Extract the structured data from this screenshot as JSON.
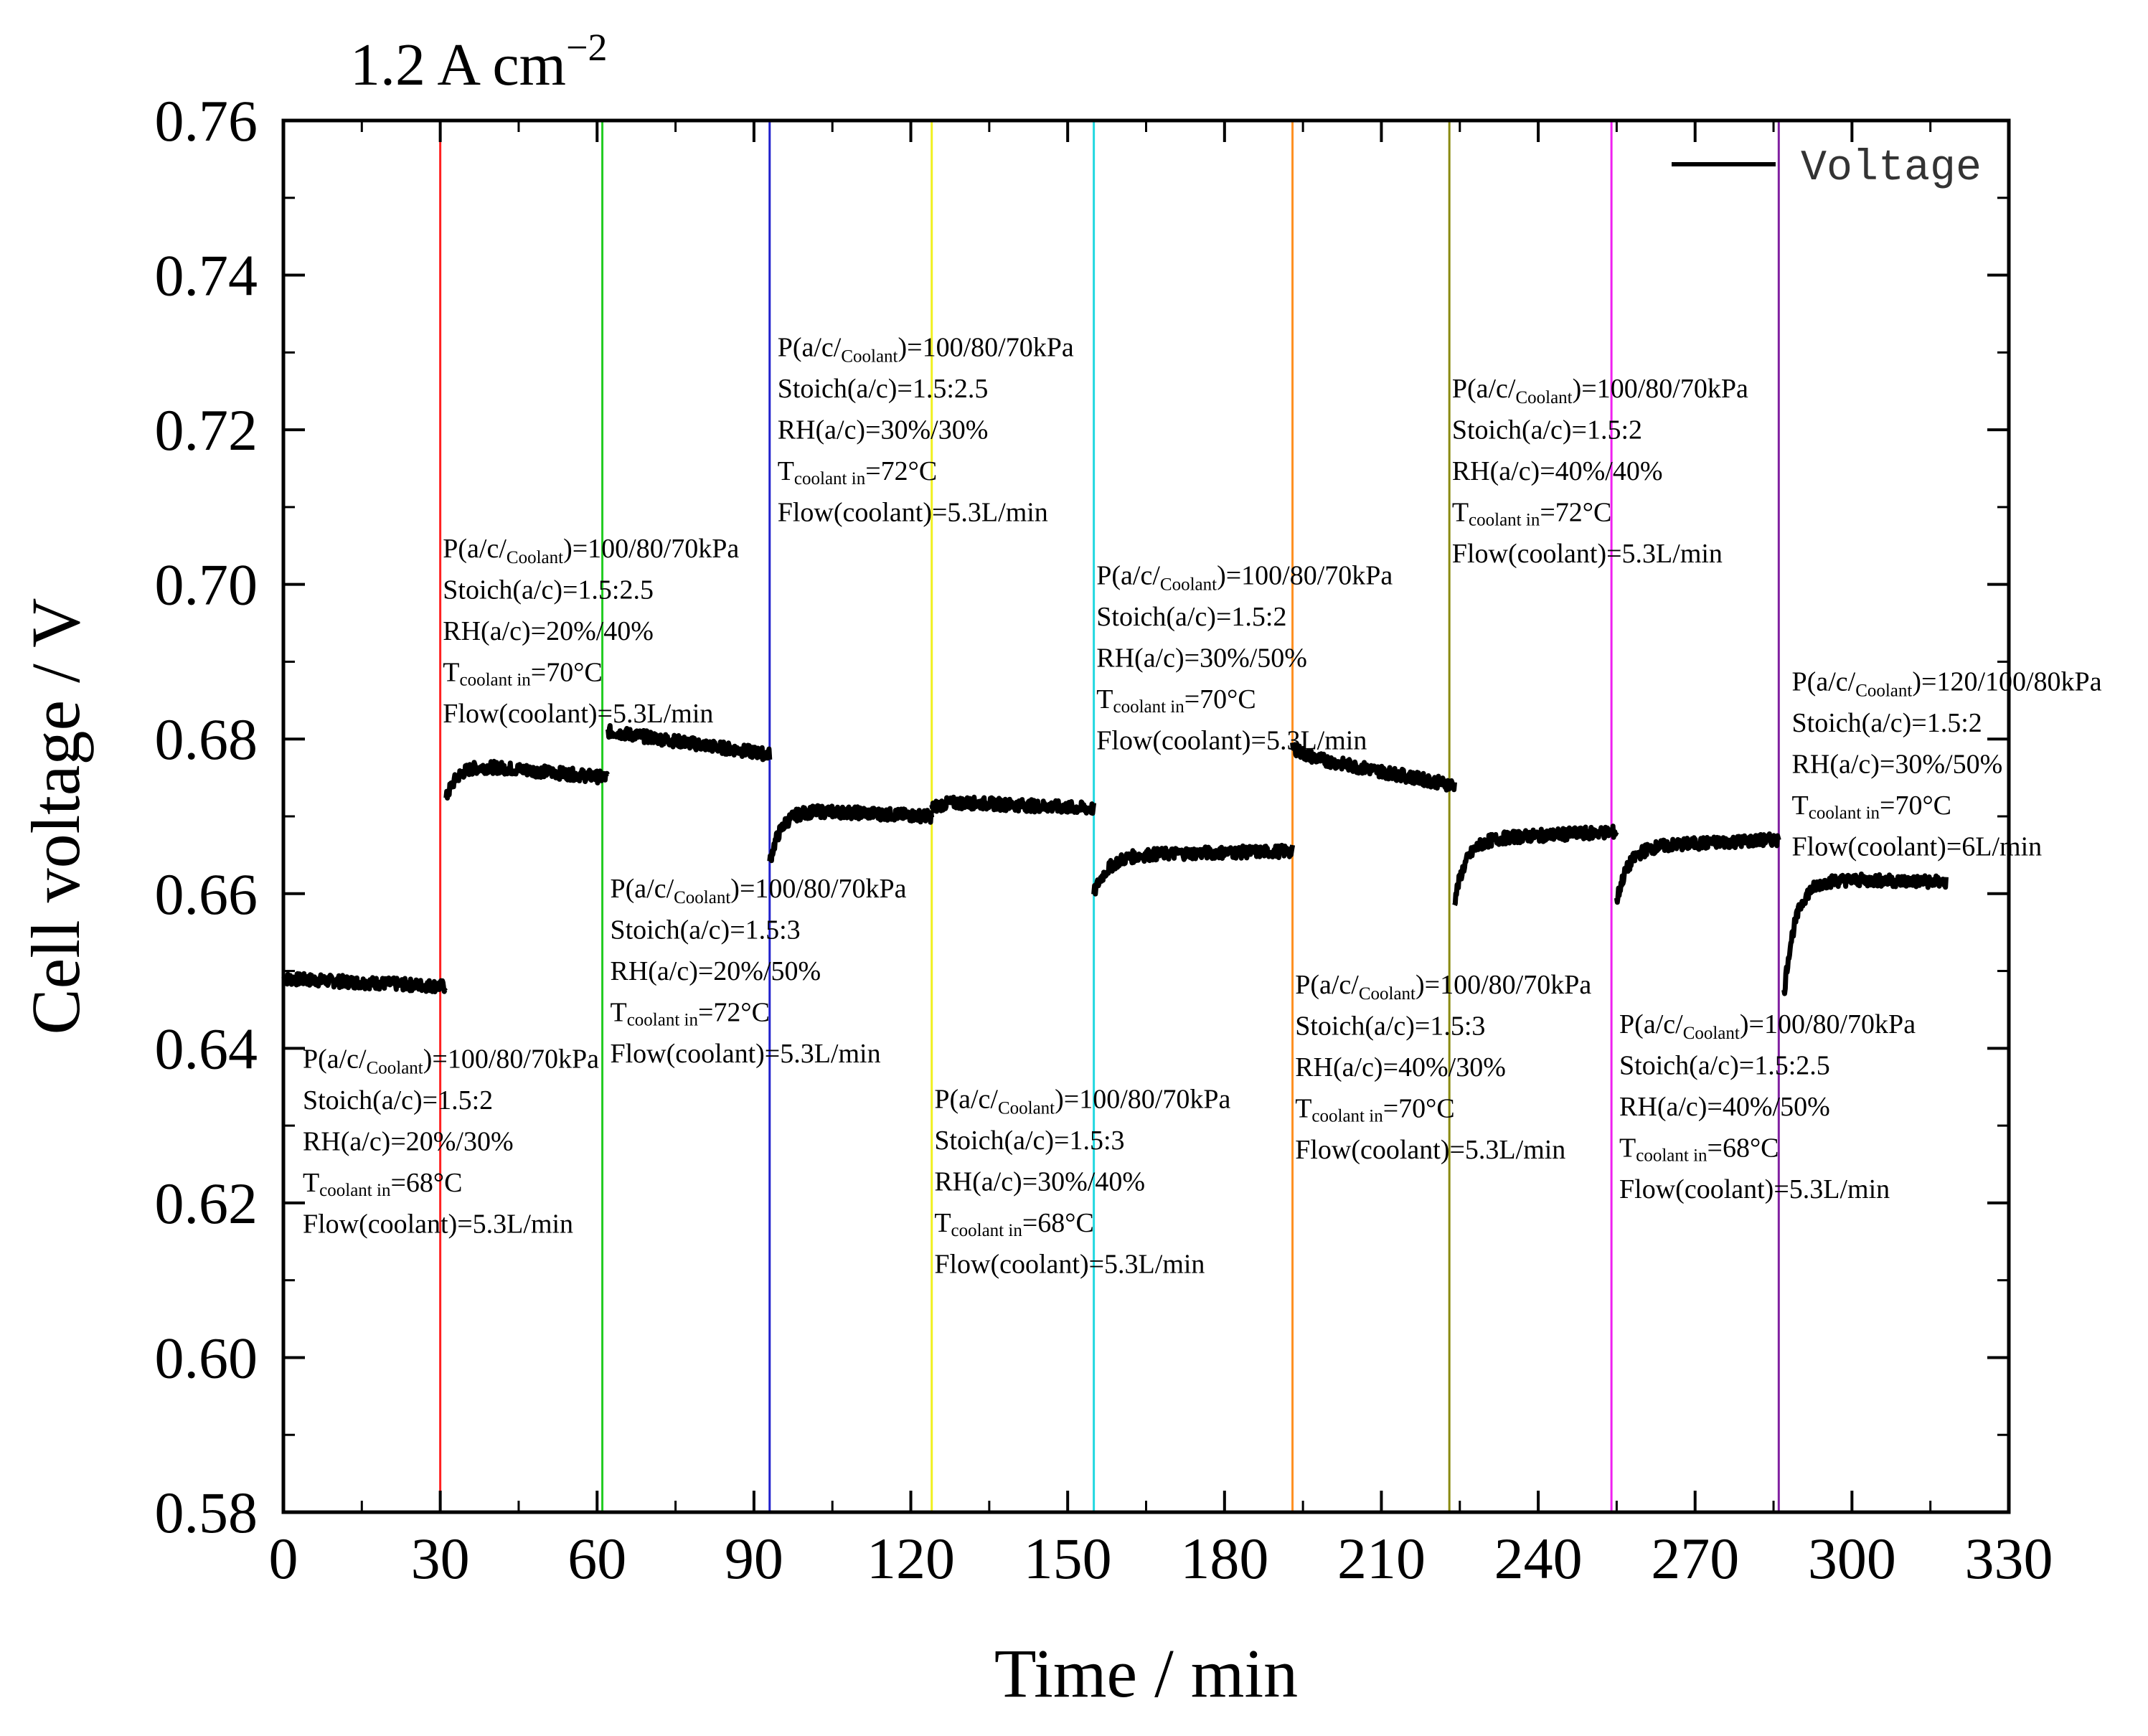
{
  "chart_data": {
    "type": "line",
    "title": "1.2 A cm",
    "title_superscript": "−2",
    "xlabel": "Time / min",
    "ylabel": "Cell voltage / V",
    "xlim": [
      0,
      330
    ],
    "ylim": [
      0.58,
      0.76
    ],
    "x_ticks": [
      "0",
      "30",
      "60",
      "90",
      "120",
      "150",
      "180",
      "210",
      "240",
      "270",
      "300",
      "330"
    ],
    "y_ticks": [
      "0.58",
      "0.60",
      "0.62",
      "0.64",
      "0.66",
      "0.68",
      "0.70",
      "0.72",
      "0.74",
      "0.76"
    ],
    "legend": {
      "entries": [
        "Voltage"
      ],
      "position": "top-right"
    },
    "series": [
      {
        "name": "Voltage",
        "color": "#000000",
        "segments": [
          {
            "x_start": 0,
            "x_end": 31,
            "v_start": 0.649,
            "v_end": 0.648,
            "v_first": 0.649
          },
          {
            "x_start": 31,
            "x_end": 62,
            "v_start": 0.677,
            "v_end": 0.675,
            "v_first": 0.672
          },
          {
            "x_start": 62,
            "x_end": 93,
            "v_start": 0.681,
            "v_end": 0.678,
            "v_first": 0.681
          },
          {
            "x_start": 93,
            "x_end": 124,
            "v_start": 0.671,
            "v_end": 0.67,
            "v_first": 0.664
          },
          {
            "x_start": 124,
            "x_end": 155,
            "v_start": 0.672,
            "v_end": 0.671,
            "v_first": 0.671
          },
          {
            "x_start": 155,
            "x_end": 193,
            "v_start": 0.665,
            "v_end": 0.6655,
            "v_first": 0.66
          },
          {
            "x_start": 193,
            "x_end": 224,
            "v_start": 0.678,
            "v_end": 0.674,
            "v_first": 0.679
          },
          {
            "x_start": 224,
            "x_end": 255,
            "v_start": 0.667,
            "v_end": 0.668,
            "v_first": 0.659
          },
          {
            "x_start": 255,
            "x_end": 286,
            "v_start": 0.666,
            "v_end": 0.667,
            "v_first": 0.659
          },
          {
            "x_start": 287,
            "x_end": 318,
            "v_start": 0.662,
            "v_end": 0.6615,
            "v_first": 0.647
          }
        ]
      }
    ],
    "markers": [
      {
        "x": 30,
        "color": "#ff2020"
      },
      {
        "x": 61,
        "color": "#22cc22"
      },
      {
        "x": 93,
        "color": "#1f1fcc"
      },
      {
        "x": 124,
        "color": "#f0f020"
      },
      {
        "x": 155,
        "color": "#22d8e0"
      },
      {
        "x": 193,
        "color": "#ff9020"
      },
      {
        "x": 223,
        "color": "#8a8a10"
      },
      {
        "x": 254,
        "color": "#f020f0"
      },
      {
        "x": 286,
        "color": "#8020a0"
      }
    ],
    "annotations": [
      {
        "x": 3.7,
        "y": 0.6375,
        "lines": [
          "P(a/c/",
          "Coolant",
          ")=100/80/70kPa",
          "Stoich(a/c)=1.5:2",
          "RH(a/c)=20%/30%",
          "T",
          "coolant in",
          "=68°C",
          "Flow(coolant)=5.3L/min"
        ]
      },
      {
        "x": 30.5,
        "y": 0.7035,
        "lines": [
          "P(a/c/",
          "Coolant",
          ")=100/80/70kPa",
          "Stoich(a/c)=1.5:2.5",
          "RH(a/c)=20%/40%",
          "T",
          "coolant in",
          "=70°C",
          "Flow(coolant)=5.3L/min"
        ]
      },
      {
        "x": 62.5,
        "y": 0.6595,
        "lines": [
          "P(a/c/",
          "Coolant",
          ")=100/80/70kPa",
          "Stoich(a/c)=1.5:3",
          "RH(a/c)=20%/50%",
          "T",
          "coolant in",
          "=72°C",
          "Flow(coolant)=5.3L/min"
        ]
      },
      {
        "x": 94.5,
        "y": 0.7295,
        "lines": [
          "P(a/c/",
          "Coolant",
          ")=100/80/70kPa",
          "Stoich(a/c)=1.5:2.5",
          "RH(a/c)=30%/30%",
          "T",
          "coolant in",
          "=72°C",
          "Flow(coolant)=5.3L/min"
        ]
      },
      {
        "x": 124.5,
        "y": 0.6323,
        "lines": [
          "P(a/c/",
          "Coolant",
          ")=100/80/70kPa",
          "Stoich(a/c)=1.5:3",
          "RH(a/c)=30%/40%",
          "T",
          "coolant in",
          "=68°C",
          "Flow(coolant)=5.3L/min"
        ]
      },
      {
        "x": 155.5,
        "y": 0.7,
        "lines": [
          "P(a/c/",
          "Coolant",
          ")=100/80/70kPa",
          "Stoich(a/c)=1.5:2",
          "RH(a/c)=30%/50%",
          "T",
          "coolant in",
          "=70°C",
          "Flow(coolant)=5.3L/min"
        ]
      },
      {
        "x": 193.5,
        "y": 0.6471,
        "lines": [
          "P(a/c/",
          "Coolant",
          ")=100/80/70kPa",
          "Stoich(a/c)=1.5:3",
          "RH(a/c)=40%/30%",
          "T",
          "coolant in",
          "=70°C",
          "Flow(coolant)=5.3L/min"
        ]
      },
      {
        "x": 223.5,
        "y": 0.7242,
        "lines": [
          "P(a/c/",
          "Coolant",
          ")=100/80/70kPa",
          "Stoich(a/c)=1.5:2",
          "RH(a/c)=40%/40%",
          "T",
          "coolant in",
          "=72°C",
          "Flow(coolant)=5.3L/min"
        ]
      },
      {
        "x": 255.5,
        "y": 0.642,
        "lines": [
          "P(a/c/",
          "Coolant",
          ")=100/80/70kPa",
          "Stoich(a/c)=1.5:2.5",
          "RH(a/c)=40%/50%",
          "T",
          "coolant in",
          "=68°C",
          "Flow(coolant)=5.3L/min"
        ]
      },
      {
        "x": 288.5,
        "y": 0.6863,
        "lines": [
          "P(a/c/",
          "Coolant",
          ")=120/100/80kPa",
          "Stoich(a/c)=1.5:2",
          "RH(a/c)=30%/50%",
          "T",
          "coolant in",
          "=70°C",
          "Flow(coolant)=6L/min"
        ]
      }
    ]
  }
}
